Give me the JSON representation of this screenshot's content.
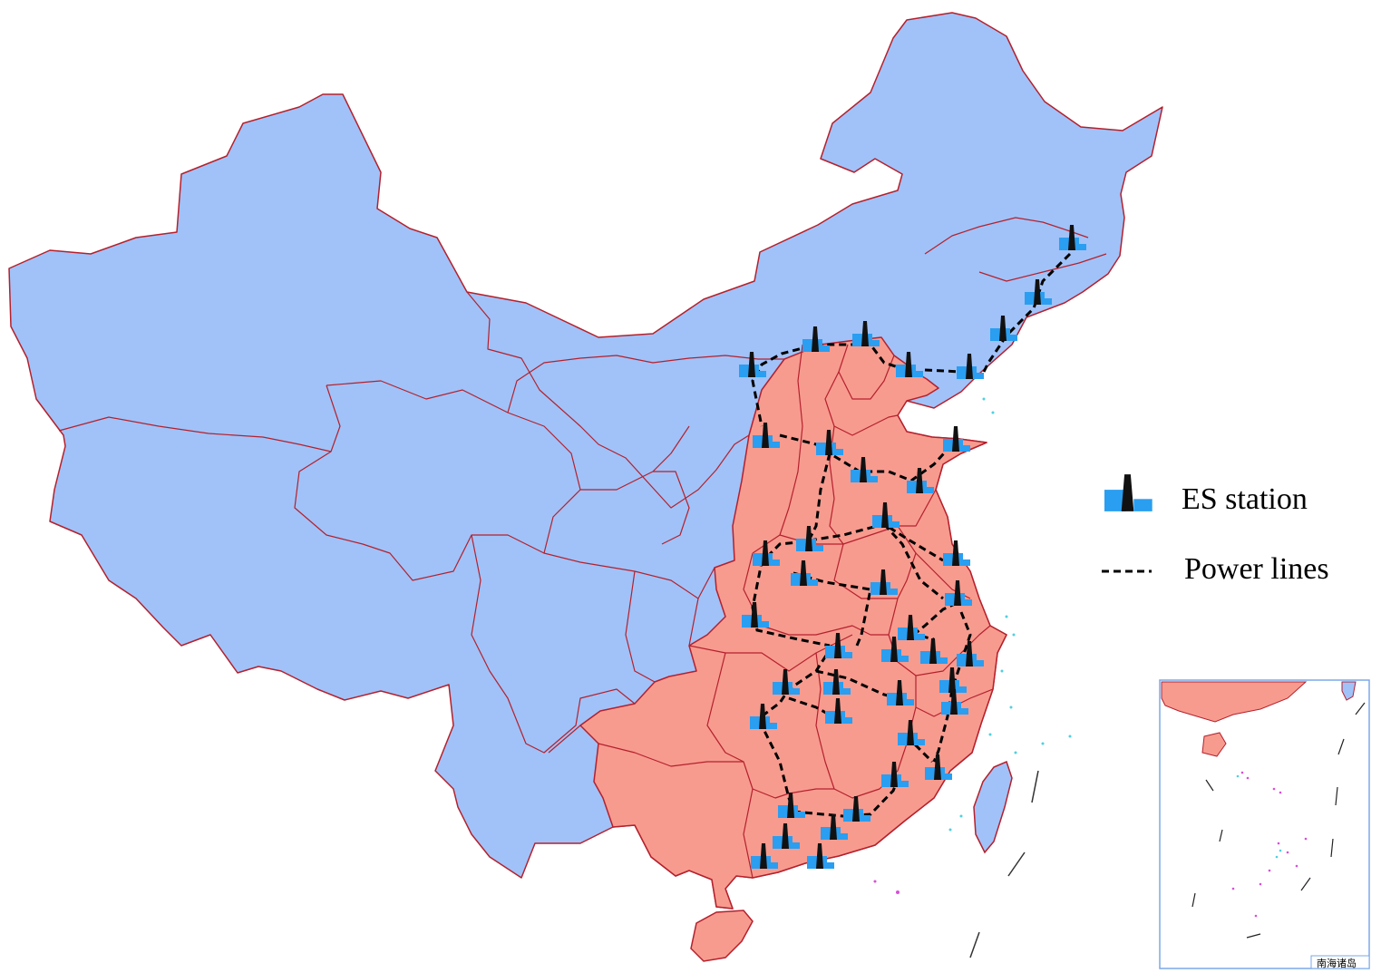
{
  "legend": {
    "station_label": "ES station",
    "power_label": "Power lines"
  },
  "inset": {
    "label": "南海诸岛"
  },
  "colors": {
    "other_region": "#a0c2f8",
    "highlight_region": "#f79b8f",
    "border": "#b5202c",
    "station_blue": "#2a9ef0",
    "station_black": "#111111",
    "power_line": "#000000"
  },
  "icons": {
    "station": "es-station-icon"
  }
}
